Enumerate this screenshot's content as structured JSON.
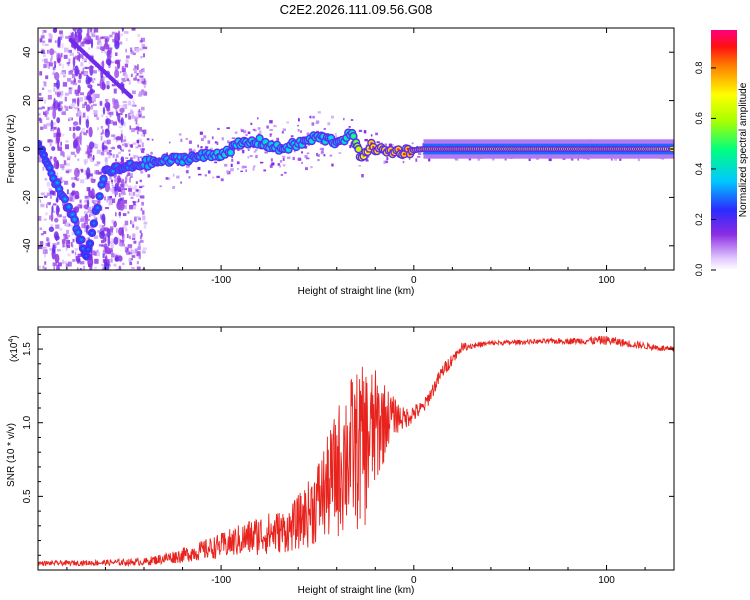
{
  "title": "C2E2.2026.111.09.56.G08",
  "colors": {
    "snr_line": "#e8231d",
    "plot_bg": "#ffffff",
    "faint_purple": "#d9b3ff",
    "mid_purple": "#9b4dff",
    "core_line": "#e8231d"
  },
  "chart_data": [
    {
      "type": "heatmap",
      "name": "spectrogram",
      "xlabel": "Height of straight line (km)",
      "ylabel": "Frequency (Hz)",
      "xlim": [
        -195,
        135
      ],
      "ylim": [
        -50,
        50
      ],
      "x_ticks": [
        -100,
        0,
        100
      ],
      "x_tick_labels": [
        "-100",
        "0",
        "100"
      ],
      "y_ticks": [
        -40,
        -20,
        0,
        20,
        40
      ],
      "y_tick_labels": [
        "-40",
        "-20",
        "0",
        "20",
        "40"
      ],
      "colorbar": {
        "label": "Normalized spectral amplitude",
        "range": [
          0.0,
          0.95
        ],
        "ticks": [
          0.0,
          0.2,
          0.4,
          0.6,
          0.8
        ],
        "tick_labels": [
          "0.0",
          "0.2",
          "0.4",
          "0.6",
          "0.8"
        ],
        "colormap": "rainbow-purple-to-magenta"
      },
      "ridge": {
        "x": [
          -195,
          -185,
          -175,
          -170,
          -160,
          -150,
          -140,
          -130,
          -120,
          -110,
          -100,
          -90,
          -80,
          -70,
          -60,
          -50,
          -40,
          -32,
          -28,
          -22,
          -15,
          -5,
          5,
          20,
          40,
          60,
          80,
          100,
          120,
          135
        ],
        "y": [
          2,
          -15,
          -32,
          -45,
          -9,
          -8,
          -6,
          -5,
          -4,
          -3,
          -2,
          2,
          3,
          0,
          2,
          5,
          3,
          6,
          -3,
          1,
          -1,
          -1,
          0,
          0,
          0,
          0,
          0,
          0,
          0,
          0
        ],
        "amplitude": [
          0.3,
          0.35,
          0.35,
          0.3,
          0.35,
          0.35,
          0.4,
          0.4,
          0.4,
          0.4,
          0.45,
          0.45,
          0.45,
          0.45,
          0.45,
          0.45,
          0.45,
          0.5,
          0.8,
          0.9,
          0.9,
          0.92,
          0.95,
          0.95,
          0.9,
          0.9,
          0.9,
          0.95,
          0.9,
          0.85
        ]
      }
    },
    {
      "type": "line",
      "name": "snr",
      "xlabel": "Height of straight line (km)",
      "ylabel": "SNR (10 * v/v)",
      "y_multiplier_label": "(x10",
      "y_multiplier_exp": "4",
      "y_multiplier_close": ")",
      "xlim": [
        -195,
        135
      ],
      "ylim": [
        0,
        1.65
      ],
      "x_ticks": [
        -100,
        0,
        100
      ],
      "x_tick_labels": [
        "-100",
        "0",
        "100"
      ],
      "y_ticks": [
        0.5,
        1.0,
        1.5
      ],
      "y_tick_labels": [
        "0.5",
        "1.0",
        "1.5"
      ],
      "series": [
        {
          "name": "SNR",
          "envelope_x": [
            -195,
            -160,
            -140,
            -120,
            -100,
            -80,
            -65,
            -55,
            -45,
            -35,
            -25,
            -18,
            -12,
            -5,
            5,
            15,
            25,
            40,
            60,
            80,
            100,
            115,
            135
          ],
          "envelope_low": [
            0.03,
            0.03,
            0.03,
            0.05,
            0.08,
            0.1,
            0.12,
            0.15,
            0.18,
            0.22,
            0.28,
            0.6,
            0.9,
            0.95,
            1.05,
            1.3,
            1.48,
            1.52,
            1.53,
            1.53,
            1.52,
            1.5,
            1.47
          ],
          "envelope_high": [
            0.06,
            0.07,
            0.08,
            0.15,
            0.25,
            0.38,
            0.42,
            0.6,
            0.9,
            1.3,
            1.4,
            1.35,
            1.2,
            1.1,
            1.15,
            1.4,
            1.55,
            1.56,
            1.57,
            1.58,
            1.6,
            1.56,
            1.52
          ]
        }
      ]
    }
  ]
}
